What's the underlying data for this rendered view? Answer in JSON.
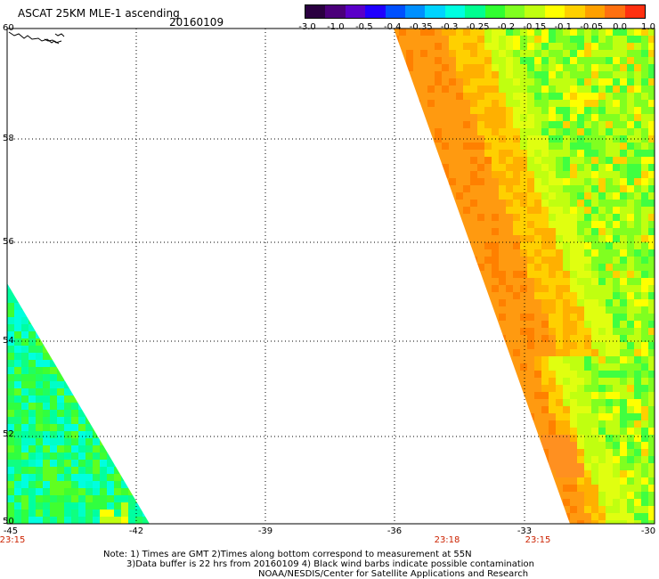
{
  "header": {
    "title": "ASCAT 25KM MLE-1 ascending",
    "date": "20160109"
  },
  "colorbar": {
    "labels": [
      "-3.0",
      "-1.0",
      "-0.5",
      "-0.4",
      "-0.35",
      "-0.3",
      "-0.25",
      "-0.2",
      "-0.15",
      "-0.1",
      "-0.05",
      "0.0",
      "1.0"
    ],
    "colors": [
      "#2a0040",
      "#4b007a",
      "#5a00c8",
      "#2000ff",
      "#0050ff",
      "#0090ff",
      "#00d4ff",
      "#00ffe0",
      "#00ff90",
      "#30ff30",
      "#80ff20",
      "#c0ff10",
      "#ffff00",
      "#ffd000",
      "#ffa000",
      "#ff7010",
      "#ff3010"
    ]
  },
  "axes": {
    "lat_labels": [
      "60",
      "58",
      "56",
      "54",
      "52",
      "50"
    ],
    "lon_labels": [
      "-45",
      "-42",
      "-39",
      "-36",
      "-33",
      "-30"
    ],
    "time_labels": [
      "23:15",
      "23:18",
      "23:15"
    ]
  },
  "map_data": {
    "lat_range": [
      50,
      60
    ],
    "lon_range": [
      -45,
      -30
    ],
    "swaths": [
      {
        "name": "west",
        "color_scale": "green-cyan"
      },
      {
        "name": "east",
        "color_scale": "orange-yellow-green"
      }
    ]
  },
  "footer": {
    "line1": "Note: 1) Times are GMT 2)Times along bottom correspond to measurement at 55N",
    "line2": "3)Data buffer is 22 hrs from 20160109 4) Black wind barbs indicate possible contamination",
    "line3": "NOAA/NESDIS/Center for Satellite Applications and Research"
  }
}
